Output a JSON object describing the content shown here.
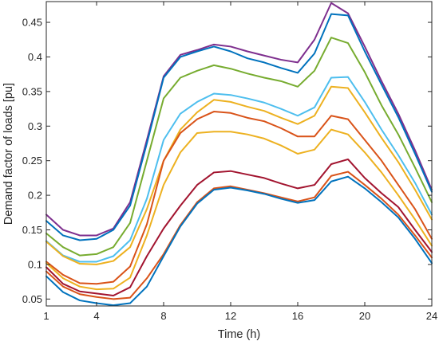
{
  "chart_data": {
    "type": "line",
    "title": "",
    "xlabel": "Time (h)",
    "ylabel": "Demand factor of loads [pu]",
    "xlim": [
      1,
      24
    ],
    "ylim": [
      0.04,
      0.48
    ],
    "grid": false,
    "legend": "none",
    "x_ticks": [
      1,
      4,
      8,
      12,
      16,
      20,
      24
    ],
    "y_ticks": [
      0.05,
      0.1,
      0.15,
      0.2,
      0.25,
      0.3,
      0.35,
      0.4,
      0.45
    ],
    "y_tick_labels": [
      "0.05",
      "0.1",
      "0.15",
      "0.2",
      "0.25",
      "0.3",
      "0.35",
      "0.4",
      "0.45"
    ],
    "x": [
      1,
      2,
      3,
      4,
      5,
      6,
      7,
      8,
      9,
      10,
      11,
      12,
      13,
      14,
      15,
      16,
      17,
      18,
      19,
      20,
      21,
      22,
      23,
      24
    ],
    "series": [
      {
        "color": "#7E2F8E",
        "values": [
          0.172,
          0.15,
          0.142,
          0.142,
          0.152,
          0.19,
          0.28,
          0.372,
          0.403,
          0.41,
          0.418,
          0.415,
          0.408,
          0.402,
          0.396,
          0.392,
          0.425,
          0.478,
          0.463,
          0.415,
          0.365,
          0.318,
          0.265,
          0.208
        ]
      },
      {
        "color": "#0072BD",
        "values": [
          0.163,
          0.142,
          0.135,
          0.137,
          0.15,
          0.185,
          0.275,
          0.37,
          0.4,
          0.408,
          0.415,
          0.408,
          0.398,
          0.392,
          0.384,
          0.377,
          0.405,
          0.462,
          0.46,
          0.408,
          0.36,
          0.313,
          0.26,
          0.205
        ]
      },
      {
        "color": "#77AC30",
        "values": [
          0.145,
          0.125,
          0.113,
          0.115,
          0.125,
          0.16,
          0.25,
          0.34,
          0.37,
          0.38,
          0.388,
          0.383,
          0.376,
          0.37,
          0.365,
          0.357,
          0.38,
          0.428,
          0.42,
          0.378,
          0.33,
          0.288,
          0.24,
          0.19
        ]
      },
      {
        "color": "#4DBEEE",
        "values": [
          0.134,
          0.113,
          0.104,
          0.104,
          0.112,
          0.135,
          0.195,
          0.28,
          0.318,
          0.335,
          0.347,
          0.345,
          0.34,
          0.334,
          0.325,
          0.315,
          0.327,
          0.37,
          0.371,
          0.335,
          0.295,
          0.258,
          0.218,
          0.172
        ]
      },
      {
        "color": "#EDB120",
        "values": [
          0.133,
          0.112,
          0.101,
          0.1,
          0.105,
          0.125,
          0.18,
          0.25,
          0.295,
          0.32,
          0.338,
          0.335,
          0.328,
          0.322,
          0.312,
          0.303,
          0.315,
          0.357,
          0.355,
          0.32,
          0.283,
          0.248,
          0.208,
          0.165
        ]
      },
      {
        "color": "#D95319",
        "values": [
          0.104,
          0.085,
          0.073,
          0.072,
          0.075,
          0.097,
          0.158,
          0.25,
          0.29,
          0.31,
          0.321,
          0.319,
          0.312,
          0.307,
          0.297,
          0.285,
          0.285,
          0.315,
          0.31,
          0.28,
          0.25,
          0.215,
          0.18,
          0.137
        ]
      },
      {
        "color": "#EDB120",
        "values": [
          0.102,
          0.08,
          0.068,
          0.064,
          0.065,
          0.081,
          0.142,
          0.215,
          0.262,
          0.29,
          0.292,
          0.292,
          0.288,
          0.282,
          0.272,
          0.26,
          0.266,
          0.295,
          0.288,
          0.262,
          0.233,
          0.2,
          0.165,
          0.127
        ]
      },
      {
        "color": "#A2142F",
        "values": [
          0.096,
          0.072,
          0.061,
          0.058,
          0.055,
          0.067,
          0.112,
          0.152,
          0.185,
          0.215,
          0.233,
          0.235,
          0.23,
          0.225,
          0.217,
          0.21,
          0.215,
          0.245,
          0.252,
          0.225,
          0.203,
          0.183,
          0.15,
          0.118
        ]
      },
      {
        "color": "#D95319",
        "values": [
          0.09,
          0.068,
          0.057,
          0.053,
          0.05,
          0.052,
          0.08,
          0.115,
          0.157,
          0.19,
          0.21,
          0.213,
          0.208,
          0.203,
          0.197,
          0.191,
          0.197,
          0.228,
          0.234,
          0.215,
          0.195,
          0.172,
          0.142,
          0.11
        ]
      },
      {
        "color": "#0072BD",
        "values": [
          0.083,
          0.06,
          0.048,
          0.044,
          0.041,
          0.044,
          0.068,
          0.112,
          0.155,
          0.188,
          0.208,
          0.211,
          0.207,
          0.202,
          0.195,
          0.189,
          0.193,
          0.22,
          0.227,
          0.21,
          0.19,
          0.168,
          0.137,
          0.102
        ]
      }
    ]
  }
}
